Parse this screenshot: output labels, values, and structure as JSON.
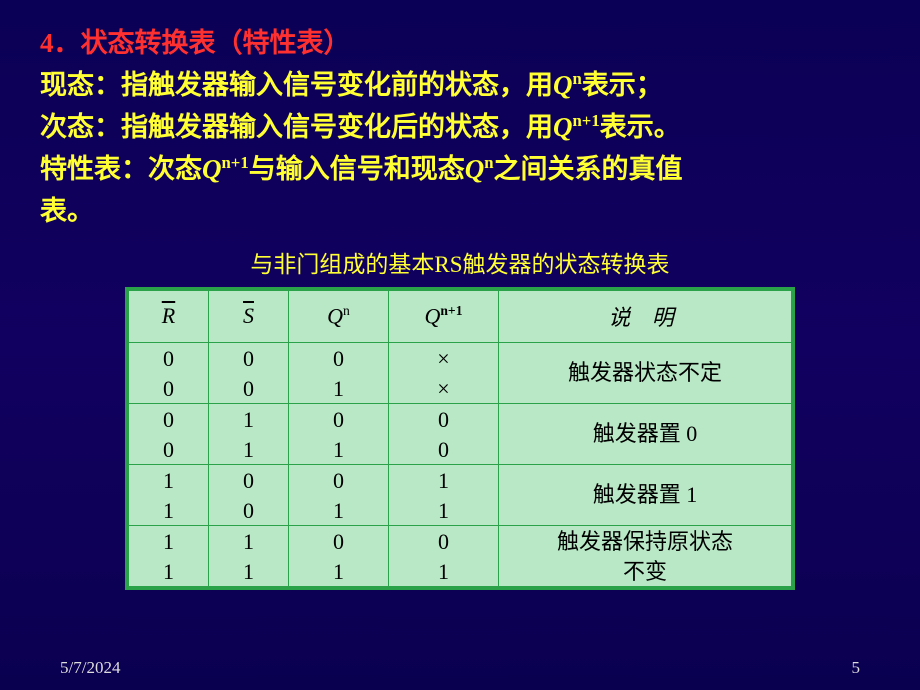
{
  "header": {
    "line1_number": "4．",
    "line1_title": "状态转换表（特性表）",
    "line2_label": "现态：",
    "line2_text": "指触发器输入信号变化前的状态，用",
    "line2_sym": "Q",
    "line2_sup": "n",
    "line2_tail": "表示；",
    "line3_label": "次态：",
    "line3_text": "指触发器输入信号变化后的状态，用",
    "line3_sym": "Q",
    "line3_sup": "n+1",
    "line3_tail": "表示。",
    "line4_label": "特性表：",
    "line4_p1": "次态",
    "line4_sym1": "Q",
    "line4_sup1": "n+1",
    "line4_p2": "与输入信号和现态",
    "line4_sym2": "Q",
    "line4_sup2": "n",
    "line4_p3": "之间关系的真值",
    "line4_tail": "表。"
  },
  "caption": "与非门组成的基本RS触发器的状态转换表",
  "table": {
    "headers": {
      "r": "R",
      "s": "S",
      "qn": "Q",
      "qn_sup": "n",
      "qn1": "Q",
      "qn1_sup": "n+1",
      "explain": "说 明"
    },
    "groups": [
      {
        "r": [
          "0",
          "0"
        ],
        "s": [
          "0",
          "0"
        ],
        "qn": [
          "0",
          "1"
        ],
        "qn1": [
          "×",
          "×"
        ],
        "explain": "触发器状态不定"
      },
      {
        "r": [
          "0",
          "0"
        ],
        "s": [
          "1",
          "1"
        ],
        "qn": [
          "0",
          "1"
        ],
        "qn1": [
          "0",
          "0"
        ],
        "explain": "触发器置 0"
      },
      {
        "r": [
          "1",
          "1"
        ],
        "s": [
          "0",
          "0"
        ],
        "qn": [
          "0",
          "1"
        ],
        "qn1": [
          "1",
          "1"
        ],
        "explain": "触发器置 1"
      },
      {
        "r": [
          "1",
          "1"
        ],
        "s": [
          "1",
          "1"
        ],
        "qn": [
          "0",
          "1"
        ],
        "qn1": [
          "0",
          "1"
        ],
        "explain": "触发器保持原状态不变"
      }
    ]
  },
  "footer": {
    "date": "5/7/2024",
    "page": "5"
  },
  "colors": {
    "bg_top": "#0a0055",
    "bg_mid": "#120060",
    "title_red": "#ff3030",
    "body_yellow": "#ffff33",
    "table_border": "#2aa24a",
    "table_fill": "#b9e8c6"
  }
}
